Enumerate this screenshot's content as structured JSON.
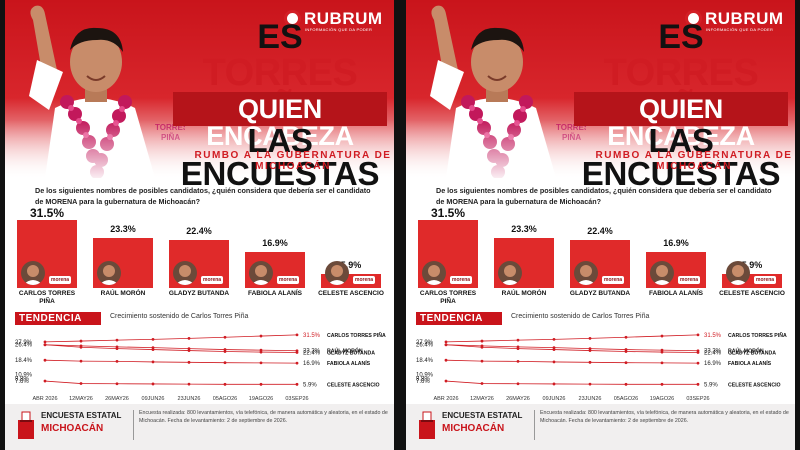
{
  "brand": {
    "name": "RUBRUM",
    "tagline": "INFORMACIÓN QUE DA PODER"
  },
  "headline": {
    "line1": "ES",
    "line2": "TORRES PIÑA",
    "line3": "QUIEN ENCABEZA",
    "line4": "LAS ENCUESTAS",
    "line5": "RUMBO A LA GUBERNATURA DE MICHOACÁN"
  },
  "question": "De los siguientes nombres de posibles candidatos, ¿quién considera que debería ser el candidato de MORENA para la gubernatura de Michoacán?",
  "colors": {
    "accent": "#d01c23",
    "bar": "#e02a2a",
    "line": "#d01c23"
  },
  "trend": {
    "label": "TENDENCIA",
    "subtitle": "Crecimiento sostenido de Carlos Torres Piña"
  },
  "footer": {
    "icon": "ballot-box-icon",
    "title": "ENCUESTA ESTATAL",
    "place": "MICHOACÁN",
    "text": "Encuesta realizada: 800 levantamientos, vía telefónica, de manera automática y aleatoria, en el estado de Michoacán. Fecha de levantamiento: 2 de septiembre de 2026."
  },
  "chart_data": [
    {
      "type": "bar",
      "categories": [
        "CARLOS TORRES PIÑA",
        "RAÚL MORÓN",
        "GLADYZ BUTANDA",
        "FABIOLA ALANÍS",
        "CELESTE ASCENCIO"
      ],
      "values": [
        31.5,
        23.3,
        22.4,
        16.9,
        5.9
      ],
      "value_labels": [
        "31.5%",
        "23.3%",
        "22.4%",
        "16.9%",
        "5.9%"
      ],
      "badges": [
        "morena",
        "",
        "morena",
        "morena",
        "morena"
      ]
    },
    {
      "type": "line",
      "x": [
        "ABR 2026",
        "12MAY26",
        "26MAY26",
        "09JUN26",
        "23JUN26",
        "05AGO26",
        "19AGO26",
        "03SEP26"
      ],
      "y_axis_labels": [
        "27.9%",
        "26.4%",
        "18.4%",
        "10.9%",
        "8.8%",
        "7.6%"
      ],
      "end_labels": [
        "31.5%",
        "23.3%",
        "22.4%",
        "16.9%",
        "5.9%"
      ],
      "series": [
        {
          "name": "CARLOS TORRES PIÑA",
          "values": [
            27.9,
            28.3,
            28.8,
            29.2,
            29.7,
            30.3,
            30.9,
            31.5
          ]
        },
        {
          "name": "RAÚL MORÓN",
          "values": [
            26.4,
            25.8,
            25.3,
            24.9,
            24.4,
            23.9,
            23.6,
            23.3
          ]
        },
        {
          "name": "GLADYZ BUTANDA",
          "values": [
            26.4,
            25.1,
            24.4,
            23.9,
            23.4,
            22.9,
            22.6,
            22.4
          ]
        },
        {
          "name": "FABIOLA ALANÍS",
          "values": [
            18.4,
            17.9,
            17.8,
            17.5,
            17.3,
            17.1,
            17.0,
            16.9
          ]
        },
        {
          "name": "CELESTE ASCENCIO",
          "values": [
            7.6,
            6.3,
            6.2,
            6.1,
            6.0,
            5.9,
            5.9,
            5.9
          ]
        }
      ]
    }
  ]
}
